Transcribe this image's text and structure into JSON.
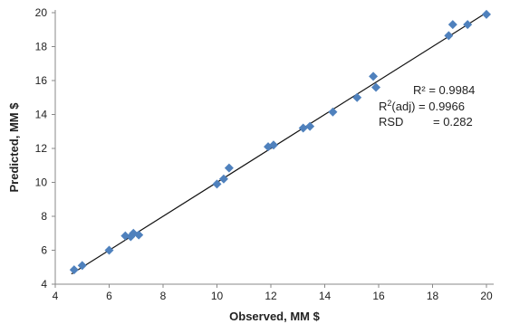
{
  "chart_data": {
    "type": "scatter",
    "title": "",
    "xlabel": "Observed, MM $",
    "ylabel": "Predicted, MM $",
    "xlim": [
      4,
      20
    ],
    "ylim": [
      4,
      20
    ],
    "x_ticks": [
      4,
      6,
      8,
      10,
      12,
      14,
      16,
      18,
      20
    ],
    "y_ticks": [
      4,
      6,
      8,
      10,
      12,
      14,
      16,
      18,
      20
    ],
    "x_tick_labels": [
      "4",
      "6",
      "8",
      "10",
      "12",
      "14",
      "16",
      "18",
      "20"
    ],
    "y_tick_labels": [
      "4",
      "6",
      "8",
      "10",
      "12",
      "14",
      "16",
      "18",
      "20"
    ],
    "grid": false,
    "legend": "none",
    "marker": "diamond",
    "series": [
      {
        "color": "#4f81bd",
        "points": [
          [
            4.7,
            4.85
          ],
          [
            5.0,
            5.1
          ],
          [
            6.0,
            6.0
          ],
          [
            6.6,
            6.85
          ],
          [
            6.8,
            6.8
          ],
          [
            6.9,
            7.0
          ],
          [
            7.1,
            6.9
          ],
          [
            10.0,
            9.9
          ],
          [
            10.25,
            10.2
          ],
          [
            10.45,
            10.85
          ],
          [
            11.9,
            12.1
          ],
          [
            12.1,
            12.2
          ],
          [
            13.2,
            13.2
          ],
          [
            13.45,
            13.3
          ],
          [
            14.3,
            14.15
          ],
          [
            15.2,
            15.0
          ],
          [
            15.8,
            16.25
          ],
          [
            15.9,
            15.6
          ],
          [
            18.6,
            18.65
          ],
          [
            18.75,
            19.3
          ],
          [
            19.3,
            19.3
          ],
          [
            20.0,
            19.9
          ]
        ]
      }
    ],
    "fit_line": {
      "from": [
        4.6,
        4.6
      ],
      "to": [
        20.0,
        20.0
      ],
      "color": "#111111"
    },
    "annotations": {
      "r2_label": "R² = 0.9984",
      "r2adj_prefix": "R",
      "r2adj_sup": "2",
      "r2adj_suffix": "(adj) = 0.9966",
      "rsd_label": "RSD",
      "rsd_value": "= 0.282"
    }
  }
}
